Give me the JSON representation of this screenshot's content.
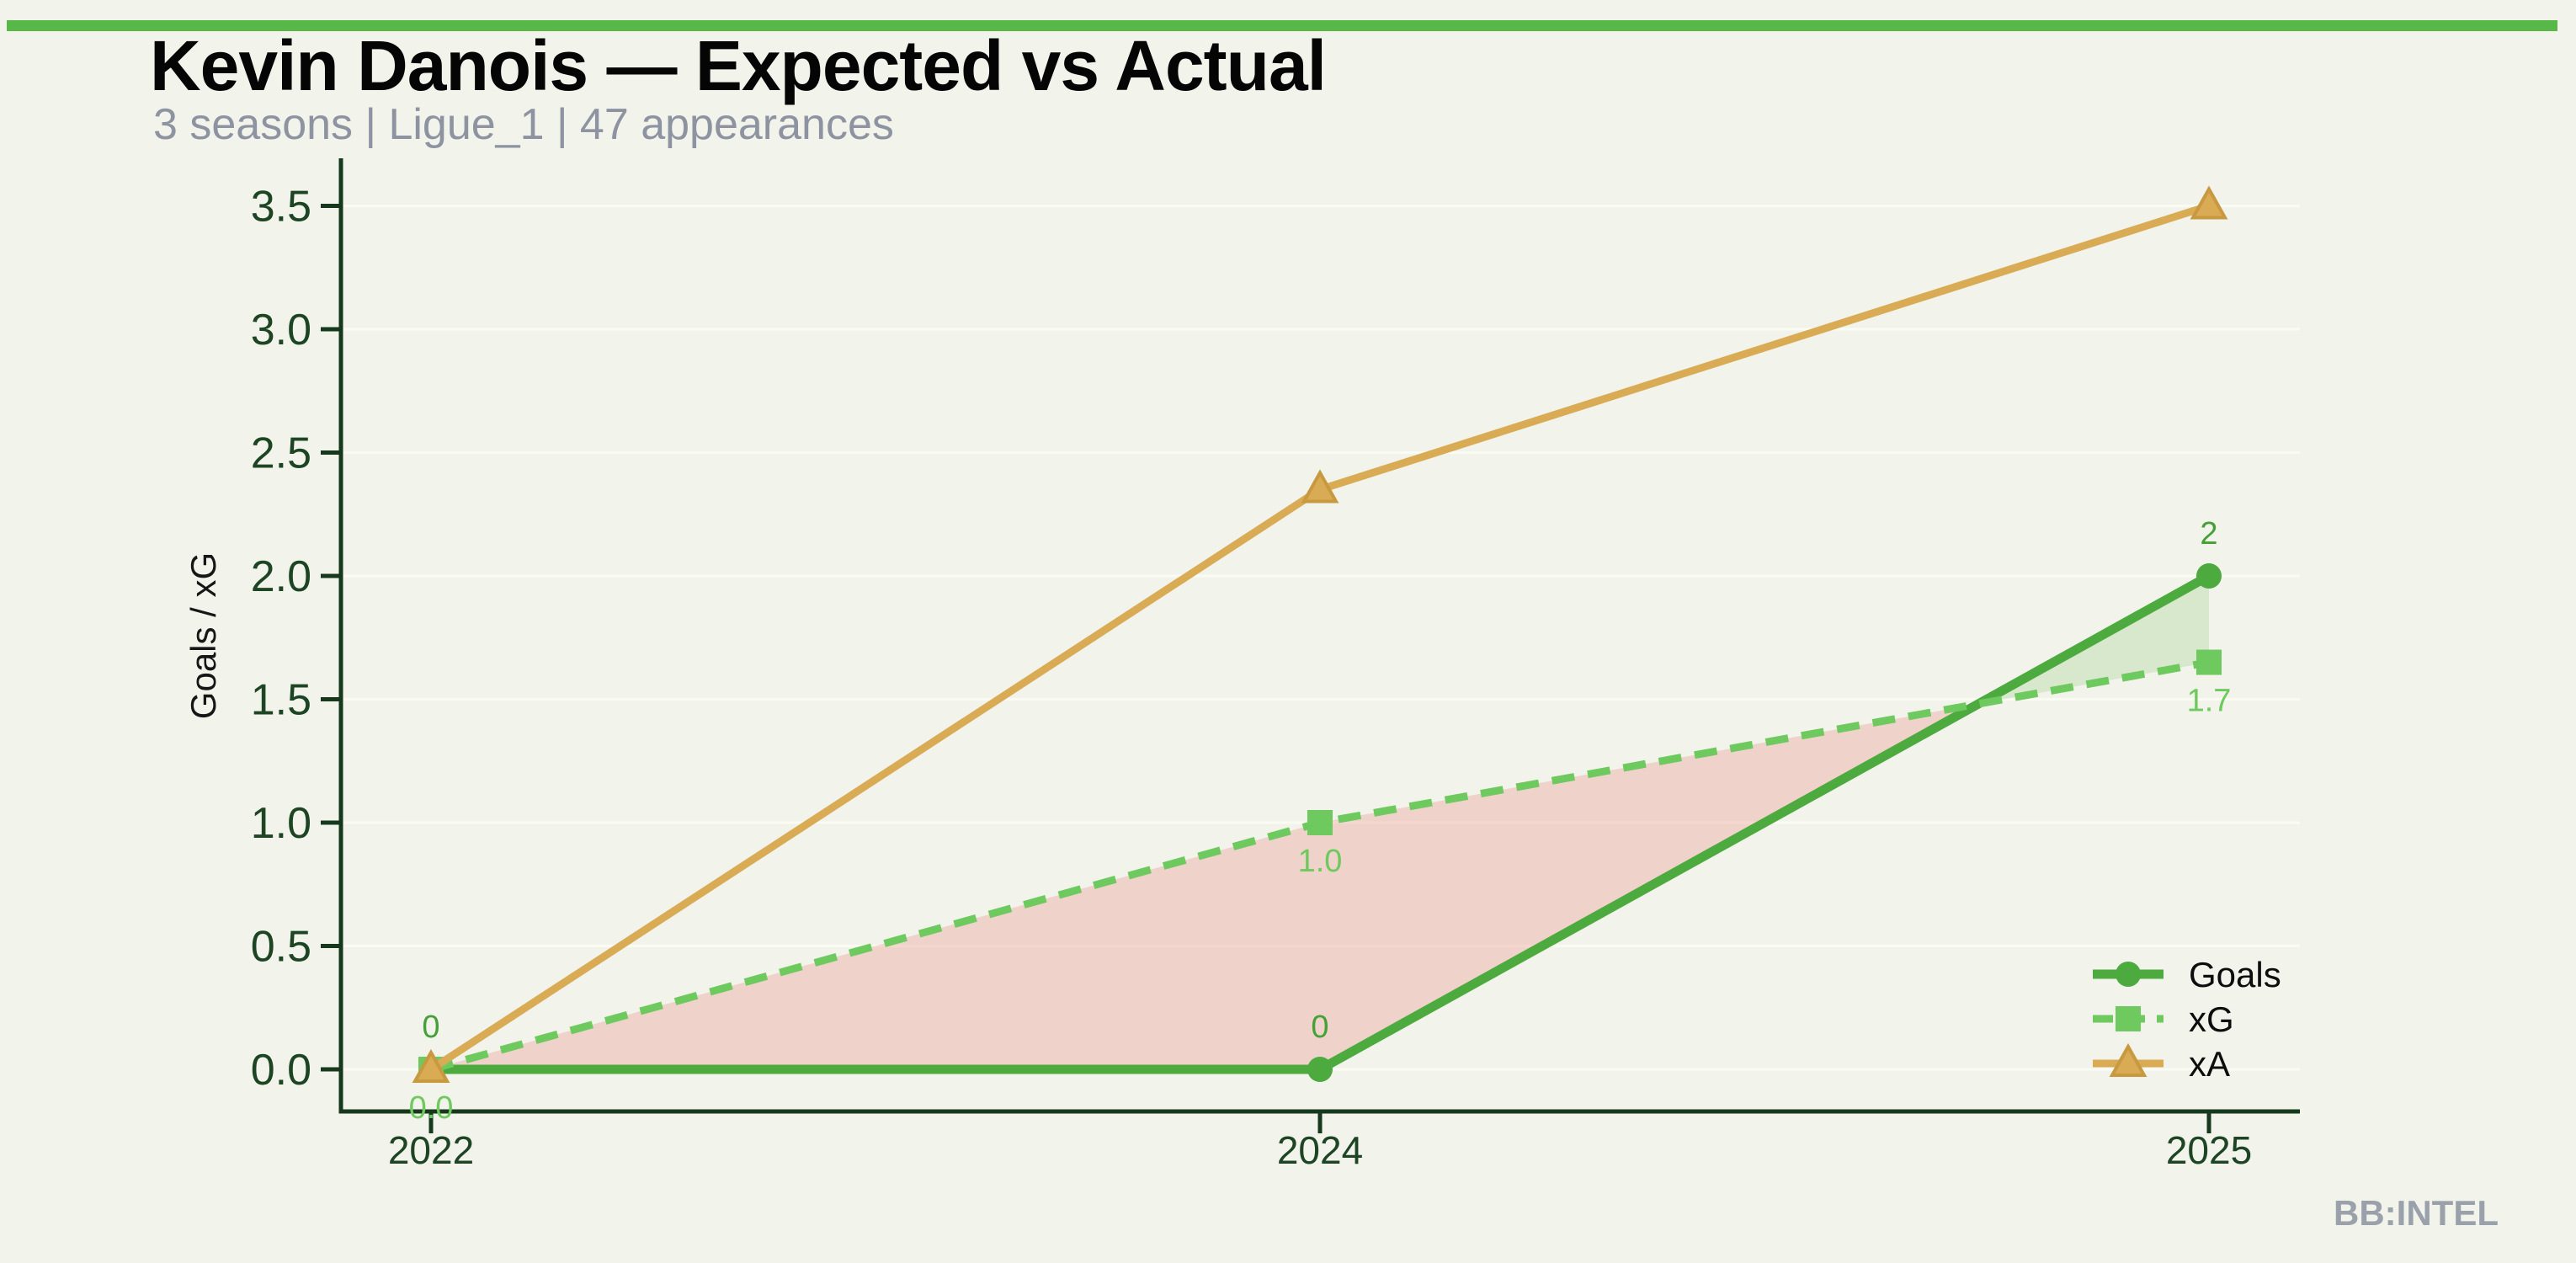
{
  "page": {
    "background": "#f2f3eb",
    "accent_bar_color": "#58b847"
  },
  "header": {
    "title": "Kevin Danois — Expected vs Actual",
    "subtitle": "3 seasons | Ligue_1 | 47 appearances",
    "title_color": "#050505",
    "subtitle_color": "#8d93a0"
  },
  "watermark": {
    "text": "BB:INTEL",
    "color": "#9ba1ab"
  },
  "chart_data": {
    "type": "line",
    "title": "Kevin Danois — Expected vs Actual",
    "categories": [
      "2022",
      "2024",
      "2025"
    ],
    "series": [
      {
        "name": "Goals",
        "values": [
          0,
          0,
          2
        ],
        "point_labels": [
          "0",
          "0",
          "2"
        ],
        "label_position": "above",
        "color": "#4caa3e",
        "label_color": "#44a136",
        "line_style": "solid",
        "line_width": 11,
        "marker": "circle"
      },
      {
        "name": "xG",
        "values": [
          0.0,
          1.0,
          1.65
        ],
        "point_labels": [
          "0.0",
          "1.0",
          "1.7"
        ],
        "label_position": "below",
        "color": "#6ec95e",
        "label_color": "#6ec95e",
        "line_style": "dashed",
        "line_width": 9,
        "marker": "square"
      },
      {
        "name": "xA",
        "values": [
          0.0,
          2.35,
          3.5
        ],
        "point_labels": [],
        "label_position": "none",
        "color": "#d9ab55",
        "label_color": "#d9ab55",
        "line_style": "solid",
        "line_width": 9,
        "marker": "triangle",
        "marker_edge_color": "#c9993f"
      }
    ],
    "fill_between": {
      "series_a": "Goals",
      "series_b": "xG",
      "color_when_b_above": "rgba(233,160,152,0.38)",
      "color_when_a_above": "rgba(148,205,125,0.28)"
    },
    "xlabel": "",
    "ylabel": "Goals / xG",
    "ytick_values": [
      0.0,
      0.5,
      1.0,
      1.5,
      2.0,
      2.5,
      3.0,
      3.5
    ],
    "ytick_labels": [
      "0.0",
      "0.5",
      "1.0",
      "1.5",
      "2.0",
      "2.5",
      "3.0",
      "3.5"
    ],
    "ylim": [
      -0.17,
      3.69
    ],
    "grid": "horizontal-faint",
    "grid_color": "#fafbf2",
    "axis_color": "#16381d",
    "tick_label_color": "#1d4524",
    "ylabel_color": "#161616",
    "legend": {
      "position": "lower right",
      "entries": [
        "Goals",
        "xG",
        "xA"
      ],
      "text_color": "#0d0d0d"
    }
  }
}
